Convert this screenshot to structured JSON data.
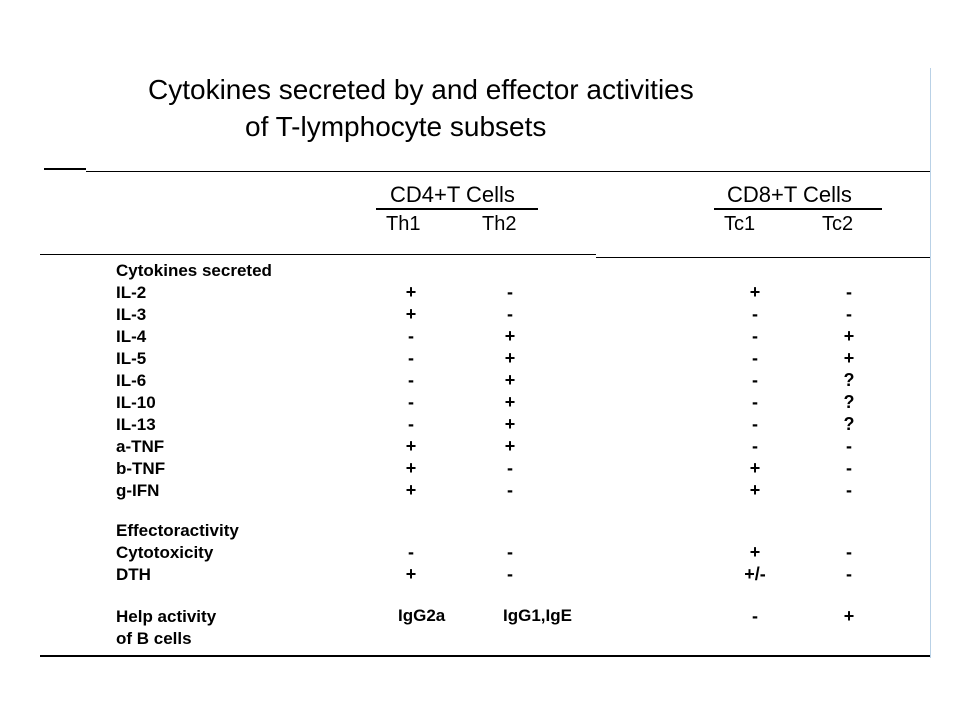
{
  "title": {
    "line1": "Cytokines secreted by and effector activities",
    "line2": "of T-lymphocyte subsets"
  },
  "groups": {
    "cd4": "CD4+T Cells",
    "cd8": "CD8+T Cells"
  },
  "columns": [
    "Th1",
    "Th2",
    "Tc1",
    "Tc2"
  ],
  "sections": {
    "cytokines": "Cytokines secreted",
    "effector": "Effectoractivity"
  },
  "rows": [
    {
      "label": "IL-2",
      "th1": "+",
      "th2": "-",
      "tc1": "+",
      "tc2": "-"
    },
    {
      "label": "IL-3",
      "th1": "+",
      "th2": "-",
      "tc1": "-",
      "tc2": "-"
    },
    {
      "label": "IL-4",
      "th1": "-",
      "th2": "+",
      "tc1": "-",
      "tc2": "+"
    },
    {
      "label": "IL-5",
      "th1": "-",
      "th2": "+",
      "tc1": "-",
      "tc2": "+"
    },
    {
      "label": "IL-6",
      "th1": "-",
      "th2": "+",
      "tc1": "-",
      "tc2": "?"
    },
    {
      "label": "IL-10",
      "th1": "-",
      "th2": "+",
      "tc1": "-",
      "tc2": "?"
    },
    {
      "label": "IL-13",
      "th1": "-",
      "th2": "+",
      "tc1": "-",
      "tc2": "?"
    },
    {
      "label": "a-TNF",
      "th1": "+",
      "th2": "+",
      "tc1": "-",
      "tc2": "-"
    },
    {
      "label": "b-TNF",
      "th1": "+",
      "th2": "-",
      "tc1": "+",
      "tc2": "-"
    },
    {
      "label": "g-IFN",
      "th1": "+",
      "th2": "-",
      "tc1": "+",
      "tc2": "-"
    }
  ],
  "effector_rows": [
    {
      "label": "Cytotoxicity",
      "th1": "-",
      "th2": "-",
      "tc1": "+",
      "tc2": "-"
    },
    {
      "label": "DTH",
      "th1": "+",
      "th2": "-",
      "tc1": "+/-",
      "tc2": "-"
    }
  ],
  "help": {
    "label1": "Help activity",
    "label2": "of B cells",
    "th1": "IgG2a",
    "th2": "IgG1,IgE",
    "tc1": "-",
    "tc2": "+"
  }
}
